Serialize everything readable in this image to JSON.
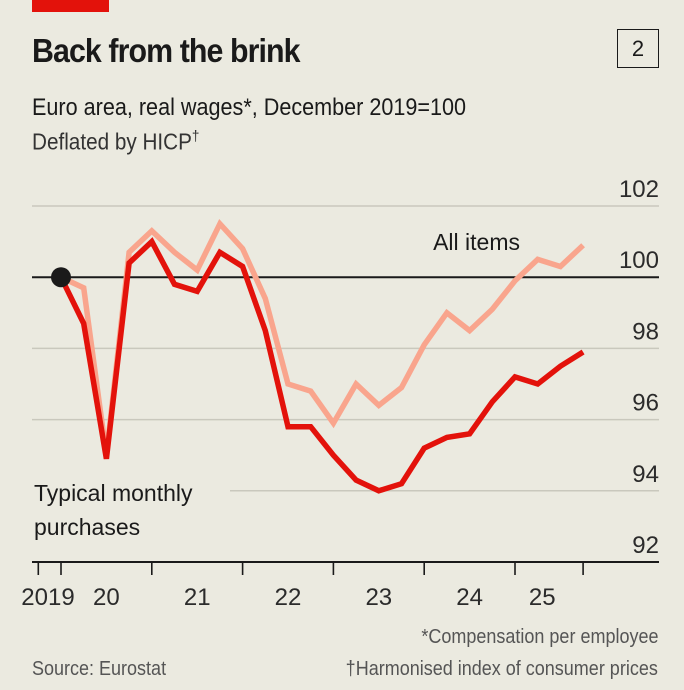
{
  "header": {
    "title": "Back from the brink",
    "chart_number": "2",
    "subtitle": "Euro area, real wages*, December 2019=100",
    "subtitle2_prefix": "Deflated by HICP",
    "subtitle2_mark": "†",
    "accent_color": "#e3120b"
  },
  "footer": {
    "source": "Source: Eurostat",
    "note1": "*Compensation per employee",
    "note2": "†Harmonised index of consumer prices"
  },
  "chart_data": {
    "type": "line",
    "title": "Back from the brink",
    "subtitle": "Euro area, real wages*, December 2019=100",
    "xlabel": "",
    "ylabel": "",
    "ylim": [
      92,
      102
    ],
    "yticks": [
      92,
      94,
      96,
      98,
      100,
      102
    ],
    "ytick_labels": [
      "92",
      "94",
      "96",
      "98",
      "100",
      "102"
    ],
    "baseline": 100,
    "grid": true,
    "x_start": 2019.75,
    "x_step": 0.25,
    "xlim": [
      2019.5,
      2025.9
    ],
    "x_tick_boundaries": [
      2019.5,
      2019.75,
      2020.75,
      2021.75,
      2022.75,
      2023.75,
      2024.75,
      2025.5
    ],
    "x_tick_labels": [
      {
        "label": "2019",
        "at": 2019.5
      },
      {
        "label": "20",
        "at": 2020.25
      },
      {
        "label": "21",
        "at": 2021.25
      },
      {
        "label": "22",
        "at": 2022.25
      },
      {
        "label": "23",
        "at": 2023.25
      },
      {
        "label": "24",
        "at": 2024.25
      },
      {
        "label": "25",
        "at": 2025.05
      }
    ],
    "start_marker": {
      "x": 2019.75,
      "y": 100,
      "color": "#1a1a1a"
    },
    "series": [
      {
        "name": "All items",
        "label": "All items",
        "color": "#f9a58d",
        "values": [
          100.0,
          99.7,
          95.0,
          100.7,
          101.3,
          100.7,
          100.2,
          101.5,
          100.8,
          99.4,
          97.0,
          96.8,
          95.9,
          97.0,
          96.4,
          96.9,
          98.1,
          99.0,
          98.5,
          99.1,
          99.9,
          100.5,
          100.3,
          100.9
        ]
      },
      {
        "name": "Typical monthly purchases",
        "label": "Typical monthly purchases",
        "color": "#e3120b",
        "values": [
          100.0,
          98.7,
          94.9,
          100.4,
          101.0,
          99.8,
          99.6,
          100.7,
          100.3,
          98.5,
          95.8,
          95.8,
          95.0,
          94.3,
          94.0,
          94.2,
          95.2,
          95.5,
          95.6,
          96.5,
          97.2,
          97.0,
          97.5,
          97.9
        ]
      }
    ],
    "annotations": [
      {
        "text": "All items",
        "series": "All items"
      },
      {
        "text_lines": [
          "Typical monthly",
          "purchases"
        ],
        "series": "Typical monthly purchases"
      }
    ]
  }
}
